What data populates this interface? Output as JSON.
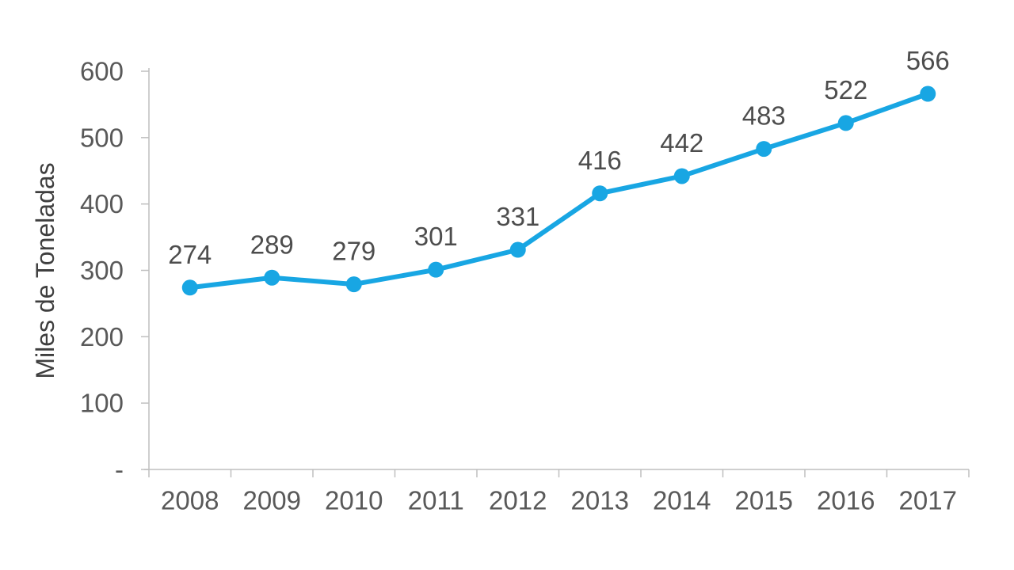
{
  "chart_data": {
    "type": "line",
    "title": "",
    "xlabel": "",
    "ylabel": "Miles de Toneladas",
    "categories": [
      "2008",
      "2009",
      "2010",
      "2011",
      "2012",
      "2013",
      "2014",
      "2015",
      "2016",
      "2017"
    ],
    "series": [
      {
        "name": "Miles de Toneladas",
        "values": [
          274,
          289,
          279,
          301,
          331,
          416,
          442,
          483,
          522,
          566
        ]
      }
    ],
    "ylim": [
      0,
      600
    ],
    "ytick_values": [
      600,
      500,
      400,
      300,
      200,
      100,
      0
    ],
    "ytick_labels": [
      "600",
      "500",
      "400",
      "300",
      "200",
      "100",
      "-"
    ],
    "grid": false,
    "legend": "none",
    "data_labels": "above-points",
    "marker": "circle",
    "colors": {
      "line": "#18A6E3",
      "marker": "#18A6E3",
      "axis": "#BFBFBF",
      "tick_label": "#595959",
      "data_label": "#4d4d4d",
      "axis_title": "#3f3f3f",
      "background": "#FFFFFF"
    }
  }
}
